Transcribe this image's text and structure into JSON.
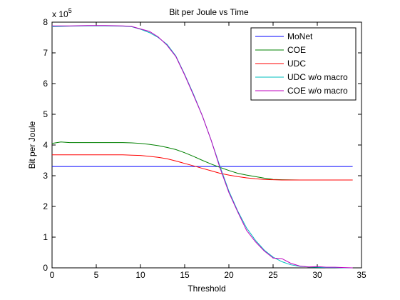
{
  "chart_data": {
    "type": "line",
    "title": "Bit per Joule vs Time",
    "xlabel": "Threshold",
    "ylabel": "Bit per Joule",
    "y_multiplier": "x 10",
    "y_multiplier_exponent": "5",
    "xlim": [
      0,
      35
    ],
    "ylim": [
      0,
      8
    ],
    "xticks": [
      0,
      5,
      10,
      15,
      20,
      25,
      30,
      35
    ],
    "yticks": [
      0,
      1,
      2,
      3,
      4,
      5,
      6,
      7,
      8
    ],
    "grid": false,
    "legend_position": "top-right",
    "series": [
      {
        "name": "MoNet",
        "color": "#0000ff",
        "x": [
          0,
          34
        ],
        "y": [
          3.3,
          3.3
        ]
      },
      {
        "name": "COE",
        "color": "#008000",
        "x": [
          0,
          1,
          2,
          4,
          6,
          8,
          9,
          10,
          11,
          12,
          13,
          14,
          15,
          16,
          17,
          18,
          19,
          20,
          21,
          22,
          23,
          24,
          25,
          26,
          28,
          30,
          32,
          34
        ],
        "y": [
          4.05,
          4.1,
          4.08,
          4.08,
          4.08,
          4.08,
          4.07,
          4.05,
          4.02,
          3.98,
          3.92,
          3.85,
          3.75,
          3.63,
          3.5,
          3.38,
          3.27,
          3.17,
          3.08,
          3.02,
          2.97,
          2.92,
          2.88,
          2.87,
          2.86,
          2.86,
          2.86,
          2.86
        ]
      },
      {
        "name": "UDC",
        "color": "#ff0000",
        "x": [
          0,
          2,
          4,
          6,
          8,
          9,
          10,
          11,
          12,
          13,
          14,
          15,
          16,
          17,
          18,
          19,
          20,
          21,
          22,
          23,
          24,
          25,
          26,
          28,
          30,
          32,
          34
        ],
        "y": [
          3.68,
          3.68,
          3.68,
          3.68,
          3.68,
          3.67,
          3.66,
          3.63,
          3.6,
          3.55,
          3.48,
          3.4,
          3.32,
          3.24,
          3.16,
          3.08,
          3.02,
          2.97,
          2.93,
          2.9,
          2.88,
          2.87,
          2.86,
          2.86,
          2.86,
          2.86,
          2.86
        ]
      },
      {
        "name": "UDC w/o macro",
        "color": "#00bfbf",
        "x": [
          0,
          2,
          4,
          6,
          8,
          9,
          10,
          11,
          12,
          13,
          14,
          15,
          16,
          17,
          18,
          19,
          20,
          21,
          22,
          23,
          24,
          25,
          26,
          27,
          28,
          29,
          30,
          31,
          32,
          33,
          34
        ],
        "y": [
          7.85,
          7.87,
          7.88,
          7.88,
          7.87,
          7.85,
          7.77,
          7.66,
          7.5,
          7.28,
          6.9,
          6.3,
          5.65,
          4.95,
          4.15,
          3.3,
          2.5,
          1.85,
          1.3,
          0.9,
          0.58,
          0.35,
          0.2,
          0.1,
          0.05,
          0.03,
          0.02,
          0.01,
          0.01,
          0.0,
          0.0
        ]
      },
      {
        "name": "COE w/o macro",
        "color": "#bf00bf",
        "x": [
          0,
          2,
          4,
          6,
          8,
          9,
          10,
          11,
          12,
          13,
          14,
          15,
          16,
          17,
          18,
          19,
          20,
          21,
          22,
          23,
          24,
          25,
          26,
          27,
          28,
          29,
          30,
          31,
          32,
          33,
          34
        ],
        "y": [
          7.88,
          7.88,
          7.89,
          7.89,
          7.88,
          7.86,
          7.78,
          7.7,
          7.52,
          7.25,
          6.88,
          6.28,
          5.62,
          4.95,
          4.15,
          3.25,
          2.45,
          1.82,
          1.22,
          0.85,
          0.55,
          0.32,
          0.3,
          0.15,
          0.06,
          0.03,
          0.04,
          0.02,
          0.02,
          0.01,
          0.0
        ]
      }
    ]
  }
}
